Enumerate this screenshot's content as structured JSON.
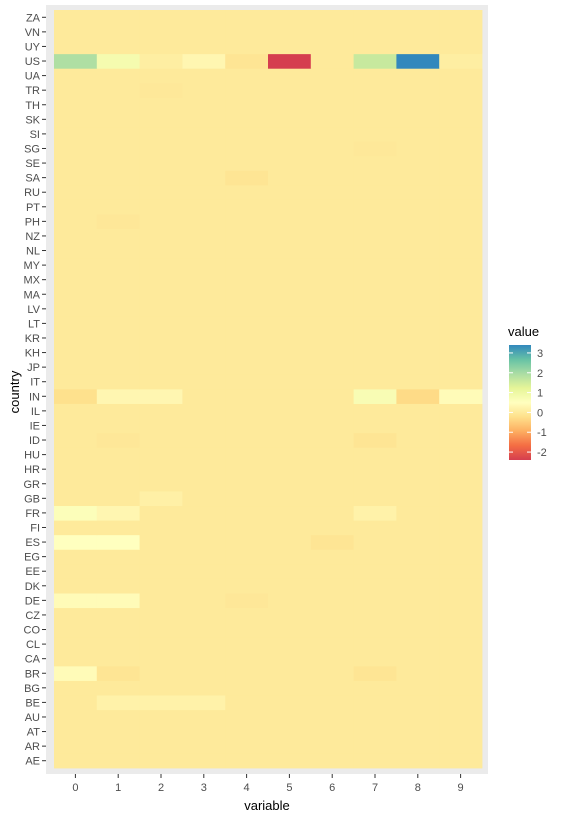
{
  "chart_data": {
    "type": "heatmap",
    "xlabel": "variable",
    "ylabel": "country",
    "x": [
      "0",
      "1",
      "2",
      "3",
      "4",
      "5",
      "6",
      "7",
      "8",
      "9"
    ],
    "y": [
      "AE",
      "AR",
      "AT",
      "AU",
      "BE",
      "BG",
      "BR",
      "CA",
      "CL",
      "CO",
      "CZ",
      "DE",
      "DK",
      "EE",
      "EG",
      "ES",
      "FI",
      "FR",
      "GB",
      "GR",
      "HR",
      "HU",
      "ID",
      "IE",
      "IL",
      "IN",
      "IT",
      "JP",
      "KH",
      "KR",
      "LT",
      "LV",
      "MA",
      "MX",
      "MY",
      "NL",
      "NZ",
      "PH",
      "PT",
      "RU",
      "SA",
      "SE",
      "SG",
      "SI",
      "SK",
      "TH",
      "TR",
      "UA",
      "US",
      "UY",
      "VN",
      "ZA"
    ],
    "default_value": 0,
    "cells": [
      {
        "country": "US",
        "variable": "0",
        "value": 1.9
      },
      {
        "country": "US",
        "variable": "1",
        "value": 0.8
      },
      {
        "country": "US",
        "variable": "2",
        "value": 0.1
      },
      {
        "country": "US",
        "variable": "3",
        "value": 0.3
      },
      {
        "country": "US",
        "variable": "4",
        "value": -0.1
      },
      {
        "country": "US",
        "variable": "5",
        "value": -2.4
      },
      {
        "country": "US",
        "variable": "6",
        "value": 0.0
      },
      {
        "country": "US",
        "variable": "7",
        "value": 1.6
      },
      {
        "country": "US",
        "variable": "8",
        "value": 3.4
      },
      {
        "country": "US",
        "variable": "9",
        "value": 0.1
      },
      {
        "country": "IN",
        "variable": "0",
        "value": -0.2
      },
      {
        "country": "IN",
        "variable": "1",
        "value": 0.3
      },
      {
        "country": "IN",
        "variable": "2",
        "value": 0.3
      },
      {
        "country": "IN",
        "variable": "7",
        "value": 0.7
      },
      {
        "country": "IN",
        "variable": "8",
        "value": -0.3
      },
      {
        "country": "IN",
        "variable": "9",
        "value": 0.4
      },
      {
        "country": "FR",
        "variable": "0",
        "value": 0.6
      },
      {
        "country": "FR",
        "variable": "1",
        "value": 0.3
      },
      {
        "country": "FR",
        "variable": "7",
        "value": 0.2
      },
      {
        "country": "ES",
        "variable": "0",
        "value": 0.5
      },
      {
        "country": "ES",
        "variable": "1",
        "value": 0.5
      },
      {
        "country": "ES",
        "variable": "6",
        "value": -0.1
      },
      {
        "country": "DE",
        "variable": "0",
        "value": 0.4
      },
      {
        "country": "DE",
        "variable": "1",
        "value": 0.4
      },
      {
        "country": "DE",
        "variable": "4",
        "value": -0.05
      },
      {
        "country": "BR",
        "variable": "0",
        "value": 0.4
      },
      {
        "country": "BR",
        "variable": "1",
        "value": -0.1
      },
      {
        "country": "BR",
        "variable": "7",
        "value": -0.1
      },
      {
        "country": "BE",
        "variable": "1",
        "value": 0.2
      },
      {
        "country": "BE",
        "variable": "2",
        "value": 0.2
      },
      {
        "country": "BE",
        "variable": "3",
        "value": 0.2
      },
      {
        "country": "GB",
        "variable": "2",
        "value": 0.15
      },
      {
        "country": "SA",
        "variable": "4",
        "value": -0.1
      },
      {
        "country": "ID",
        "variable": "7",
        "value": -0.1
      },
      {
        "country": "ID",
        "variable": "1",
        "value": -0.05
      },
      {
        "country": "PH",
        "variable": "1",
        "value": -0.05
      },
      {
        "country": "TR",
        "variable": "2",
        "value": -0.03
      },
      {
        "country": "SG",
        "variable": "7",
        "value": -0.03
      }
    ],
    "legend": {
      "title": "value",
      "breaks": [
        3,
        2,
        1,
        0,
        -1,
        -2
      ],
      "range": [
        -2.4,
        3.4
      ],
      "palette": [
        "#d53e4f",
        "#f46d43",
        "#fdae61",
        "#fee08b",
        "#ffffbf",
        "#e6f598",
        "#abdda4",
        "#66c2a5",
        "#3288bd"
      ]
    },
    "grid": true,
    "legend_position": "right"
  }
}
